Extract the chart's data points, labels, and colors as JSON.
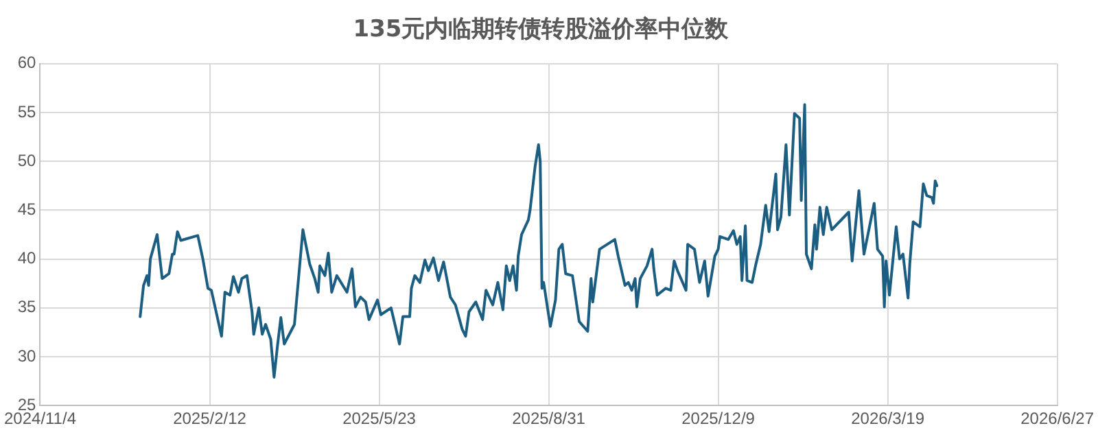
{
  "chart_data": {
    "type": "line",
    "title": "135元内临期转债转股溢价率中位数",
    "x": [
      "2025-01-02",
      "2025-01-04",
      "2025-01-06",
      "2025-01-07",
      "2025-01-08",
      "2025-01-12",
      "2025-01-15",
      "2025-01-19",
      "2025-01-21",
      "2025-01-22",
      "2025-01-24",
      "2025-01-26",
      "2025-02-05",
      "2025-02-08",
      "2025-02-11",
      "2025-02-13",
      "2025-02-19",
      "2025-02-21",
      "2025-02-24",
      "2025-02-26",
      "2025-03-01",
      "2025-03-03",
      "2025-03-06",
      "2025-03-09",
      "2025-03-10",
      "2025-03-13",
      "2025-03-15",
      "2025-03-17",
      "2025-03-20",
      "2025-03-22",
      "2025-03-24",
      "2025-03-26",
      "2025-03-28",
      "2025-04-03",
      "2025-04-08",
      "2025-04-09",
      "2025-04-12",
      "2025-04-15",
      "2025-04-17",
      "2025-04-18",
      "2025-04-21",
      "2025-04-23",
      "2025-04-25",
      "2025-04-28",
      "2025-05-04",
      "2025-05-07",
      "2025-05-09",
      "2025-05-12",
      "2025-05-15",
      "2025-05-17",
      "2025-05-22",
      "2025-05-24",
      "2025-05-30",
      "2025-06-04",
      "2025-06-06",
      "2025-06-10",
      "2025-06-11",
      "2025-06-13",
      "2025-06-16",
      "2025-06-19",
      "2025-06-21",
      "2025-06-24",
      "2025-06-27",
      "2025-06-30",
      "2025-07-04",
      "2025-07-07",
      "2025-07-11",
      "2025-07-13",
      "2025-07-15",
      "2025-07-19",
      "2025-07-23",
      "2025-07-25",
      "2025-07-29",
      "2025-08-01",
      "2025-08-04",
      "2025-08-06",
      "2025-08-08",
      "2025-08-10",
      "2025-08-12",
      "2025-08-13",
      "2025-08-15",
      "2025-08-19",
      "2025-08-20",
      "2025-08-23",
      "2025-08-25",
      "2025-08-26",
      "2025-08-27",
      "2025-08-28",
      "2025-09-01",
      "2025-09-04",
      "2025-09-06",
      "2025-09-08",
      "2025-09-10",
      "2025-09-14",
      "2025-09-18",
      "2025-09-23",
      "2025-09-25",
      "2025-09-26",
      "2025-09-30",
      "2025-10-09",
      "2025-10-11",
      "2025-10-15",
      "2025-10-17",
      "2025-10-19",
      "2025-10-21",
      "2025-10-22",
      "2025-10-24",
      "2025-10-28",
      "2025-10-31",
      "2025-11-01",
      "2025-11-03",
      "2025-11-08",
      "2025-11-11",
      "2025-11-13",
      "2025-11-15",
      "2025-11-20",
      "2025-11-21",
      "2025-11-25",
      "2025-11-28",
      "2025-12-01",
      "2025-12-03",
      "2025-12-07",
      "2025-12-09",
      "2025-12-10",
      "2025-12-15",
      "2025-12-18",
      "2025-12-20",
      "2025-12-22",
      "2025-12-23",
      "2025-12-25",
      "2025-12-26",
      "2025-12-29",
      "2025-12-31",
      "2026-01-03",
      "2026-01-06",
      "2026-01-08",
      "2026-01-12",
      "2026-01-13",
      "2026-01-15",
      "2026-01-18",
      "2026-01-20",
      "2026-01-23",
      "2026-01-26",
      "2026-01-27",
      "2026-01-29",
      "2026-01-30",
      "2026-02-02",
      "2026-02-04",
      "2026-02-05",
      "2026-02-07",
      "2026-02-09",
      "2026-02-11",
      "2026-02-14",
      "2026-02-24",
      "2026-02-26",
      "2026-03-02",
      "2026-03-05",
      "2026-03-11",
      "2026-03-13",
      "2026-03-16",
      "2026-03-17",
      "2026-03-18",
      "2026-03-20",
      "2026-03-24",
      "2026-03-26",
      "2026-03-28",
      "2026-03-31",
      "2026-04-01",
      "2026-04-03",
      "2026-04-07",
      "2026-04-09",
      "2026-04-11",
      "2026-04-14",
      "2026-04-15",
      "2026-04-16",
      "2026-04-17"
    ],
    "series": [
      {
        "color": "#1b5e82",
        "values": [
          34.1,
          37.3,
          38.3,
          37.3,
          40.0,
          42.5,
          38.0,
          38.5,
          40.5,
          40.5,
          42.8,
          41.9,
          42.4,
          40.0,
          37.0,
          36.8,
          32.1,
          36.6,
          36.3,
          38.2,
          36.6,
          38.0,
          38.3,
          34.6,
          32.3,
          35.0,
          32.3,
          33.3,
          31.8,
          27.9,
          31.1,
          34.0,
          31.3,
          33.3,
          43.0,
          42.1,
          39.5,
          38.0,
          36.6,
          39.3,
          38.3,
          40.6,
          36.6,
          38.3,
          36.6,
          39.0,
          35.1,
          36.1,
          35.6,
          33.8,
          35.8,
          34.3,
          35.0,
          31.3,
          34.1,
          34.1,
          37.0,
          38.3,
          37.6,
          39.9,
          38.8,
          40.1,
          37.8,
          39.7,
          36.1,
          35.3,
          32.8,
          32.1,
          34.6,
          35.6,
          33.8,
          36.8,
          35.3,
          37.6,
          34.8,
          39.3,
          37.8,
          39.3,
          36.8,
          40.3,
          42.5,
          44.0,
          45.0,
          49.5,
          51.7,
          50.0,
          37.0,
          37.6,
          33.1,
          35.8,
          41.0,
          41.5,
          38.5,
          38.3,
          33.6,
          32.6,
          38.0,
          35.6,
          41.0,
          42.0,
          40.3,
          37.3,
          37.6,
          36.8,
          38.0,
          35.1,
          38.0,
          39.3,
          41.0,
          39.0,
          36.3,
          37.0,
          36.8,
          39.8,
          38.8,
          36.8,
          41.5,
          41.0,
          37.6,
          39.8,
          36.2,
          40.3,
          41.0,
          42.3,
          42.0,
          42.9,
          41.5,
          42.3,
          37.8,
          43.4,
          37.8,
          37.6,
          39.3,
          41.5,
          45.5,
          42.8,
          48.7,
          43.0,
          44.3,
          51.7,
          44.5,
          54.9,
          54.4,
          46.0,
          55.8,
          40.5,
          39.0,
          43.5,
          41.0,
          45.3,
          42.5,
          45.3,
          43.0,
          44.8,
          39.8,
          47.0,
          40.5,
          45.7,
          41.0,
          40.3,
          35.1,
          39.8,
          36.3,
          43.3,
          40.0,
          40.5,
          36.0,
          39.5,
          43.8,
          43.3,
          47.7,
          46.5,
          46.3,
          45.7,
          48.0,
          47.5
        ]
      }
    ],
    "xlim": [
      "2024-11-04",
      "2026-06-27"
    ],
    "xticks": [
      {
        "value": "2024-11-04",
        "label": "2024/11/4"
      },
      {
        "value": "2025-02-12",
        "label": "2025/2/12"
      },
      {
        "value": "2025-05-23",
        "label": "2025/5/23"
      },
      {
        "value": "2025-08-31",
        "label": "2025/8/31"
      },
      {
        "value": "2025-12-09",
        "label": "2025/12/9"
      },
      {
        "value": "2026-03-19",
        "label": "2026/3/19"
      },
      {
        "value": "2026-06-27",
        "label": "2026/6/27"
      }
    ],
    "ylim": [
      25,
      60
    ],
    "yticks": [
      25,
      30,
      35,
      40,
      45,
      50,
      55,
      60
    ],
    "grid": true,
    "legend": false,
    "marker": "none",
    "line_style": "solid"
  }
}
